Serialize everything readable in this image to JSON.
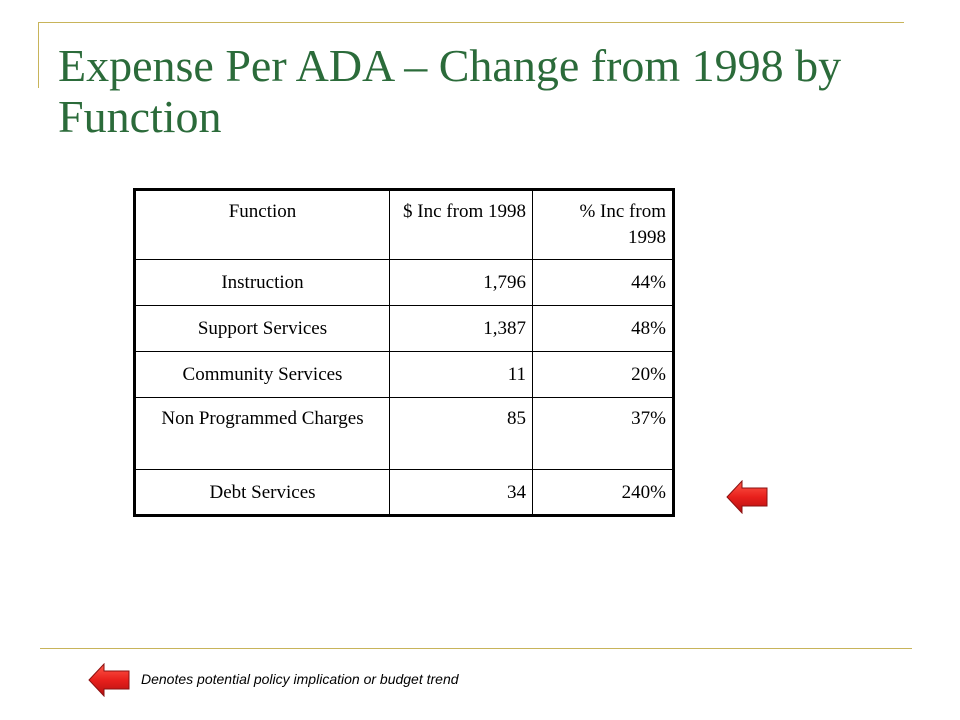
{
  "slide": {
    "title": "Expense Per ADA – Change from 1998 by Function",
    "accent_color": "#c8b45a",
    "title_color": "#2b6b3a"
  },
  "table": {
    "headers": [
      "Function",
      "$ Inc from 1998",
      "% Inc from 1998"
    ],
    "rows": [
      [
        "Instruction",
        "1,796",
        "44%"
      ],
      [
        "Support Services",
        "1,387",
        "48%"
      ],
      [
        "Community Services",
        "11",
        "20%"
      ],
      [
        "Non Programmed Charges",
        "85",
        "37%"
      ],
      [
        "Debt Services",
        "34",
        "240%"
      ]
    ]
  },
  "flag": {
    "icon": "left-arrow-icon",
    "color": "#e8201c",
    "flagged_row": "Debt Services"
  },
  "legend": {
    "text": "Denotes potential policy implication or budget trend"
  }
}
